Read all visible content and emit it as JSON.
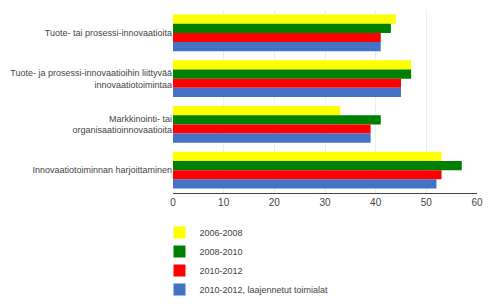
{
  "chart_data": {
    "type": "bar",
    "orientation": "horizontal",
    "categories": [
      "Tuote- tai prosessi-innovaatioita",
      "Tuote- ja prosessi-innovaatioihin liittyvää\ninnovaatiotoimintaa",
      "Markkinointi- tai\norganisaatioinnovaatioita",
      "Innovaatiotoiminnan harjoittaminen"
    ],
    "series": [
      {
        "name": "2006-2008",
        "color": "#ffff00",
        "values": [
          44,
          47,
          33,
          53
        ]
      },
      {
        "name": "2008-2010",
        "color": "#008000",
        "values": [
          43,
          47,
          41,
          57
        ]
      },
      {
        "name": "2010-2012",
        "color": "#ff0000",
        "values": [
          41,
          45,
          39,
          53
        ]
      },
      {
        "name": "2010-2012, laajennetut toimialat",
        "color": "#4472c4",
        "values": [
          41,
          45,
          39,
          52
        ]
      }
    ],
    "xlim": [
      0,
      60
    ],
    "xticks": [
      0,
      10,
      20,
      30,
      40,
      50,
      60
    ],
    "grid": true,
    "legend": "bottom"
  }
}
